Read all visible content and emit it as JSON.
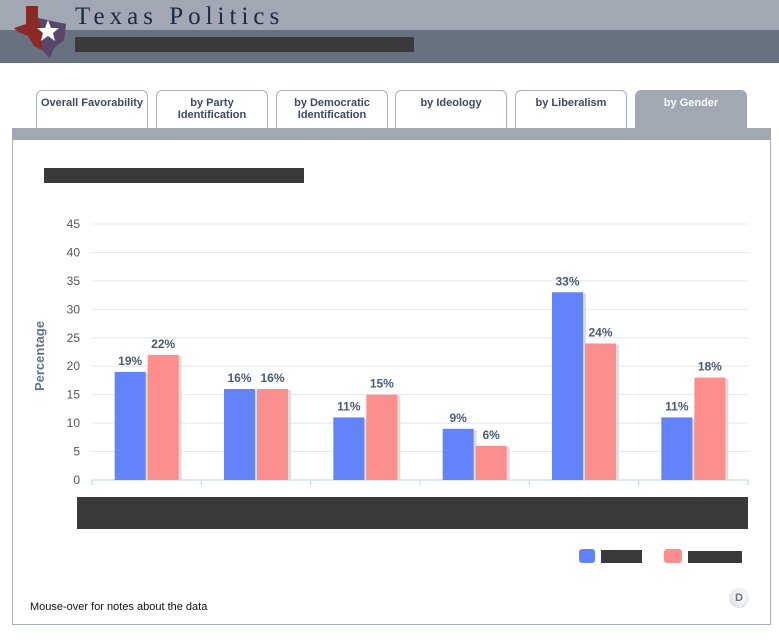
{
  "header": {
    "title": "Texas Politics"
  },
  "tabs": [
    {
      "label": "Overall Favorability",
      "active": false
    },
    {
      "label": "by Party Identification",
      "active": false
    },
    {
      "label": "by Democratic Identification",
      "active": false
    },
    {
      "label": "by Ideology",
      "active": false
    },
    {
      "label": "by Liberalism",
      "active": false
    },
    {
      "label": "by Gender",
      "active": true
    }
  ],
  "footer": {
    "note": "Mouse-over for notes about the data",
    "badge": "D"
  },
  "chart_data": {
    "type": "bar",
    "title": "",
    "xlabel": "",
    "ylabel": "Percentage",
    "ylim": [
      0,
      45
    ],
    "yticks": [
      0,
      5,
      10,
      15,
      20,
      25,
      30,
      35,
      40,
      45
    ],
    "categories": [
      "",
      "",
      "",
      "",
      "",
      ""
    ],
    "grid": true,
    "legend": "bottom-right",
    "series": [
      {
        "values": [
          19,
          16,
          11,
          9,
          33,
          11
        ],
        "labels": [
          "19%",
          "16%",
          "11%",
          "9%",
          "33%",
          "11%"
        ],
        "color": "#6383fb"
      },
      {
        "values": [
          22,
          16,
          15,
          6,
          24,
          18
        ],
        "labels": [
          "22%",
          "16%",
          "15%",
          "6%",
          "24%",
          "18%"
        ],
        "color": "#fd8e8e"
      }
    ]
  }
}
